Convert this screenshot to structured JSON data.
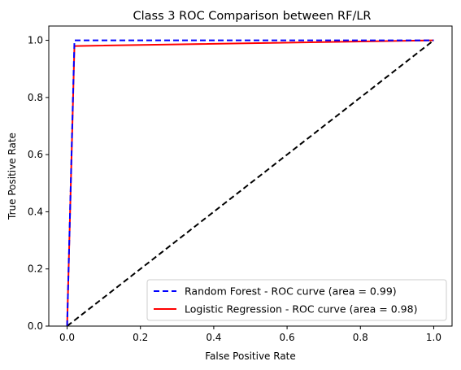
{
  "chart_data": {
    "type": "line",
    "title": "Class 3 ROC Comparison between RF/LR",
    "xlabel": "False Positive Rate",
    "ylabel": "True Positive Rate",
    "xlim": [
      -0.05,
      1.05
    ],
    "ylim": [
      0.0,
      1.05
    ],
    "xticks": [
      "0.0",
      "0.2",
      "0.4",
      "0.6",
      "0.8",
      "1.0"
    ],
    "yticks": [
      "0.0",
      "0.2",
      "0.4",
      "0.6",
      "0.8",
      "1.0"
    ],
    "grid": false,
    "legend_position": "lower-right",
    "series": [
      {
        "name": "Random Forest - ROC curve (area = 0.99)",
        "color": "#0000ff",
        "style": "dashed",
        "x": [
          0.0,
          0.02,
          1.0
        ],
        "y": [
          0.0,
          1.0,
          1.0
        ]
      },
      {
        "name": "Logistic Regression - ROC curve (area = 0.98)",
        "color": "#ff0000",
        "style": "solid",
        "x": [
          0.0,
          0.02,
          1.0
        ],
        "y": [
          0.0,
          0.98,
          1.0
        ]
      },
      {
        "name": "",
        "color": "#000000",
        "style": "dashed",
        "x": [
          0.0,
          1.0
        ],
        "y": [
          0.0,
          1.0
        ]
      }
    ]
  }
}
